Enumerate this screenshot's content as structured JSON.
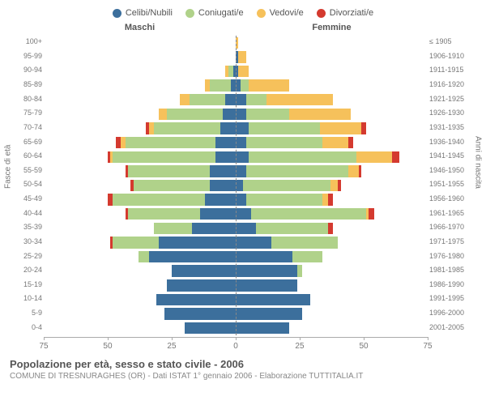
{
  "chart": {
    "type": "population-pyramid",
    "legend": [
      {
        "label": "Celibi/Nubili",
        "color": "#3c6f9c"
      },
      {
        "label": "Coniugati/e",
        "color": "#b0d28a"
      },
      {
        "label": "Vedovi/e",
        "color": "#f6c15b"
      },
      {
        "label": "Divorziati/e",
        "color": "#d43a2f"
      }
    ],
    "left_header": "Maschi",
    "right_header": "Femmine",
    "y_axis_left_label": "Fasce di età",
    "y_axis_right_label": "Anni di nascita",
    "x_max": 75,
    "x_ticks": [
      75,
      50,
      25,
      0,
      25,
      50,
      75
    ],
    "background_color": "#ffffff",
    "bar_gap_ratio": 0.18,
    "axis_color": "#888888",
    "tick_font_size": 9,
    "rows": [
      {
        "age": "100+",
        "birth": "≤ 1905",
        "m": {
          "cel": 0,
          "con": 0,
          "ved": 0,
          "div": 0
        },
        "f": {
          "cel": 0,
          "con": 0,
          "ved": 1,
          "div": 0
        }
      },
      {
        "age": "95-99",
        "birth": "1906-1910",
        "m": {
          "cel": 0,
          "con": 0,
          "ved": 0,
          "div": 0
        },
        "f": {
          "cel": 1,
          "con": 0,
          "ved": 3,
          "div": 0
        }
      },
      {
        "age": "90-94",
        "birth": "1911-1915",
        "m": {
          "cel": 1,
          "con": 2,
          "ved": 1,
          "div": 0
        },
        "f": {
          "cel": 1,
          "con": 0,
          "ved": 4,
          "div": 0
        }
      },
      {
        "age": "85-89",
        "birth": "1916-1920",
        "m": {
          "cel": 2,
          "con": 8,
          "ved": 2,
          "div": 0
        },
        "f": {
          "cel": 2,
          "con": 3,
          "ved": 16,
          "div": 0
        }
      },
      {
        "age": "80-84",
        "birth": "1921-1925",
        "m": {
          "cel": 4,
          "con": 14,
          "ved": 4,
          "div": 0
        },
        "f": {
          "cel": 4,
          "con": 8,
          "ved": 26,
          "div": 0
        }
      },
      {
        "age": "75-79",
        "birth": "1926-1930",
        "m": {
          "cel": 5,
          "con": 22,
          "ved": 3,
          "div": 0
        },
        "f": {
          "cel": 4,
          "con": 17,
          "ved": 24,
          "div": 0
        }
      },
      {
        "age": "70-74",
        "birth": "1931-1935",
        "m": {
          "cel": 6,
          "con": 26,
          "ved": 2,
          "div": 1
        },
        "f": {
          "cel": 5,
          "con": 28,
          "ved": 16,
          "div": 2
        }
      },
      {
        "age": "65-69",
        "birth": "1936-1940",
        "m": {
          "cel": 8,
          "con": 35,
          "ved": 2,
          "div": 2
        },
        "f": {
          "cel": 4,
          "con": 30,
          "ved": 10,
          "div": 2
        }
      },
      {
        "age": "60-64",
        "birth": "1941-1945",
        "m": {
          "cel": 8,
          "con": 40,
          "ved": 1,
          "div": 1
        },
        "f": {
          "cel": 5,
          "con": 42,
          "ved": 14,
          "div": 3
        }
      },
      {
        "age": "55-59",
        "birth": "1946-1950",
        "m": {
          "cel": 10,
          "con": 32,
          "ved": 0,
          "div": 1
        },
        "f": {
          "cel": 4,
          "con": 40,
          "ved": 4,
          "div": 1
        }
      },
      {
        "age": "50-54",
        "birth": "1951-1955",
        "m": {
          "cel": 10,
          "con": 30,
          "ved": 0,
          "div": 1
        },
        "f": {
          "cel": 3,
          "con": 34,
          "ved": 3,
          "div": 1
        }
      },
      {
        "age": "45-49",
        "birth": "1956-1960",
        "m": {
          "cel": 12,
          "con": 36,
          "ved": 0,
          "div": 2
        },
        "f": {
          "cel": 4,
          "con": 30,
          "ved": 2,
          "div": 2
        }
      },
      {
        "age": "40-44",
        "birth": "1961-1965",
        "m": {
          "cel": 14,
          "con": 28,
          "ved": 0,
          "div": 1
        },
        "f": {
          "cel": 6,
          "con": 45,
          "ved": 1,
          "div": 2
        }
      },
      {
        "age": "35-39",
        "birth": "1966-1970",
        "m": {
          "cel": 17,
          "con": 15,
          "ved": 0,
          "div": 0
        },
        "f": {
          "cel": 8,
          "con": 28,
          "ved": 0,
          "div": 2
        }
      },
      {
        "age": "30-34",
        "birth": "1971-1975",
        "m": {
          "cel": 30,
          "con": 18,
          "ved": 0,
          "div": 1
        },
        "f": {
          "cel": 14,
          "con": 26,
          "ved": 0,
          "div": 0
        }
      },
      {
        "age": "25-29",
        "birth": "1976-1980",
        "m": {
          "cel": 34,
          "con": 4,
          "ved": 0,
          "div": 0
        },
        "f": {
          "cel": 22,
          "con": 12,
          "ved": 0,
          "div": 0
        }
      },
      {
        "age": "20-24",
        "birth": "1981-1985",
        "m": {
          "cel": 25,
          "con": 0,
          "ved": 0,
          "div": 0
        },
        "f": {
          "cel": 24,
          "con": 2,
          "ved": 0,
          "div": 0
        }
      },
      {
        "age": "15-19",
        "birth": "1986-1990",
        "m": {
          "cel": 27,
          "con": 0,
          "ved": 0,
          "div": 0
        },
        "f": {
          "cel": 24,
          "con": 0,
          "ved": 0,
          "div": 0
        }
      },
      {
        "age": "10-14",
        "birth": "1991-1995",
        "m": {
          "cel": 31,
          "con": 0,
          "ved": 0,
          "div": 0
        },
        "f": {
          "cel": 29,
          "con": 0,
          "ved": 0,
          "div": 0
        }
      },
      {
        "age": "5-9",
        "birth": "1996-2000",
        "m": {
          "cel": 28,
          "con": 0,
          "ved": 0,
          "div": 0
        },
        "f": {
          "cel": 26,
          "con": 0,
          "ved": 0,
          "div": 0
        }
      },
      {
        "age": "0-4",
        "birth": "2001-2005",
        "m": {
          "cel": 20,
          "con": 0,
          "ved": 0,
          "div": 0
        },
        "f": {
          "cel": 21,
          "con": 0,
          "ved": 0,
          "div": 0
        }
      }
    ]
  },
  "footer": {
    "title": "Popolazione per età, sesso e stato civile - 2006",
    "subtitle": "COMUNE DI TRESNURAGHES (OR) - Dati ISTAT 1° gennaio 2006 - Elaborazione TUTTITALIA.IT"
  }
}
